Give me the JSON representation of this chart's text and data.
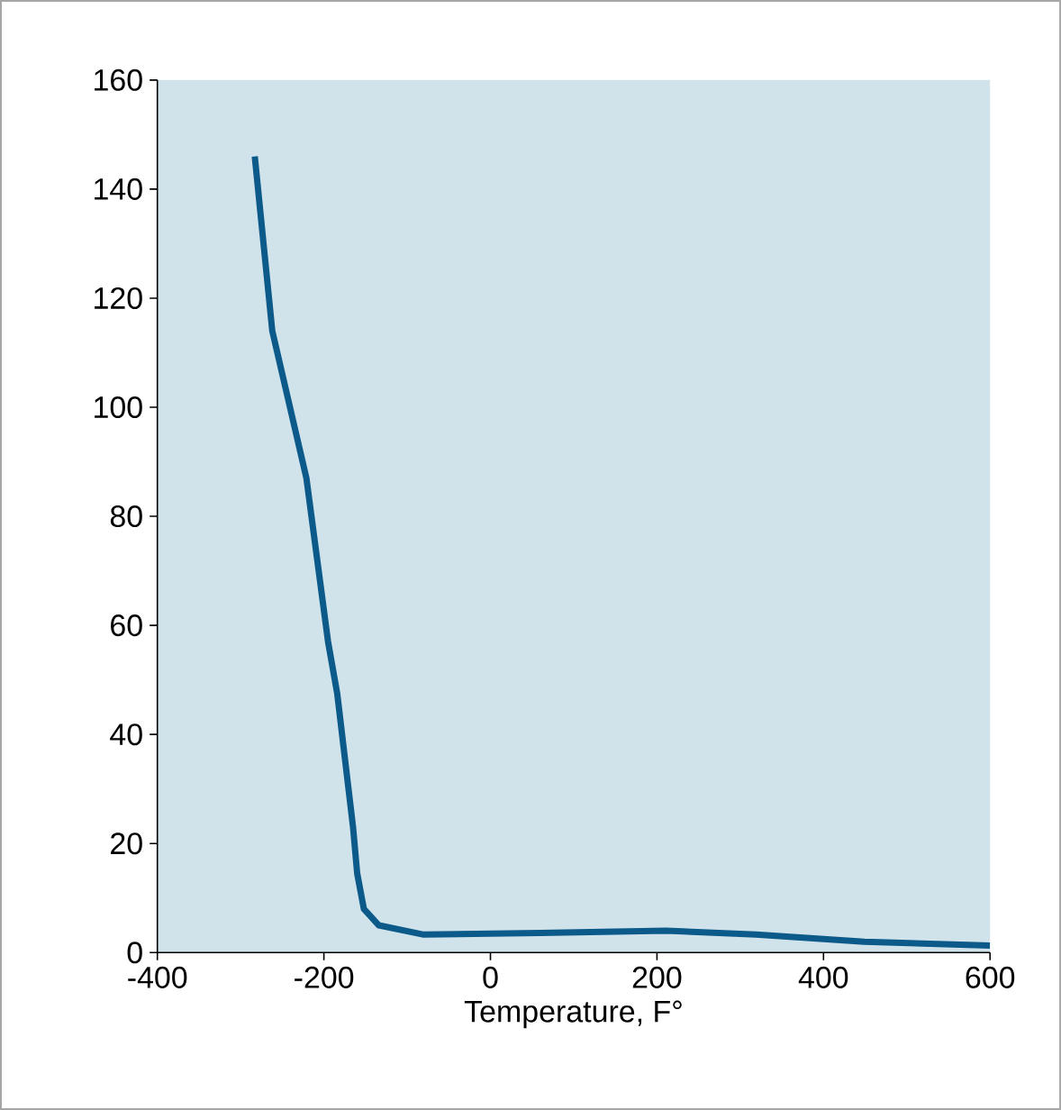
{
  "chart_data": {
    "type": "line",
    "xlabel": "Temperature, F°",
    "x": [
      -283,
      -262,
      -221,
      -195,
      -184,
      -165,
      -160,
      -152,
      -134,
      -80,
      60,
      211,
      319,
      449,
      600
    ],
    "series": [
      {
        "color": "#0b5a8a",
        "values": [
          146,
          114,
          87,
          57,
          47.5,
          23,
          14.5,
          8,
          5,
          3.3,
          3.6,
          4,
          3.3,
          2,
          1.3
        ]
      }
    ],
    "xlim": [
      -400,
      600
    ],
    "ylim": [
      0,
      160
    ],
    "xticks": [
      -400,
      -200,
      0,
      200,
      400,
      600
    ],
    "yticks": [
      0,
      20,
      40,
      60,
      80,
      100,
      120,
      140,
      160
    ],
    "marker": "none",
    "line_style": "solid"
  }
}
